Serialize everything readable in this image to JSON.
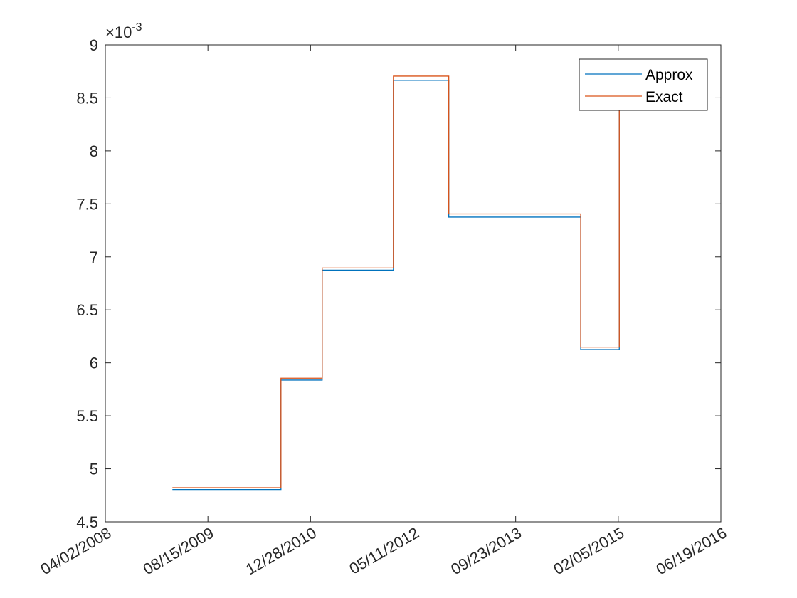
{
  "chart_data": {
    "type": "line",
    "line_style": "stairs",
    "x_axis": {
      "ticks": [
        "04/02/2008",
        "08/15/2009",
        "12/28/2010",
        "05/11/2012",
        "09/23/2013",
        "02/05/2015",
        "06/19/2016"
      ],
      "range": [
        "04/02/2008",
        "06/19/2016"
      ],
      "tick_rotation_deg": -30
    },
    "y_axis": {
      "ticks": [
        "4.5",
        "5",
        "5.5",
        "6",
        "6.5",
        "7",
        "7.5",
        "8",
        "8.5",
        "9"
      ],
      "range": [
        0.0045,
        0.009
      ],
      "exponent_label": "×10",
      "exponent_power": "-3"
    },
    "grid": false,
    "legend": {
      "placement": "top-right"
    },
    "series": [
      {
        "name": "Approx",
        "color": "#0072BD",
        "steps": [
          {
            "x": "02/23/2009",
            "y": 0.004805
          },
          {
            "x": "08/06/2010",
            "y": 0.005837
          },
          {
            "x": "02/23/2011",
            "y": 0.006875
          },
          {
            "x": "02/05/2012",
            "y": 0.008665
          },
          {
            "x": "11/01/2012",
            "y": 0.007375
          },
          {
            "x": "08/06/2014",
            "y": 0.006125
          },
          {
            "x": "02/10/2015",
            "y": 0.008475
          }
        ],
        "end_x": "02/10/2015"
      },
      {
        "name": "Exact",
        "color": "#D95319",
        "steps": [
          {
            "x": "02/23/2009",
            "y": 0.004822
          },
          {
            "x": "08/06/2010",
            "y": 0.005855
          },
          {
            "x": "02/23/2011",
            "y": 0.006895
          },
          {
            "x": "02/05/2012",
            "y": 0.008705
          },
          {
            "x": "11/01/2012",
            "y": 0.007405
          },
          {
            "x": "08/06/2014",
            "y": 0.006148
          },
          {
            "x": "02/10/2015",
            "y": 0.008475
          }
        ],
        "end_x": "02/10/2015"
      }
    ]
  },
  "colors": {
    "axis": "#262626",
    "background": "#ffffff"
  }
}
